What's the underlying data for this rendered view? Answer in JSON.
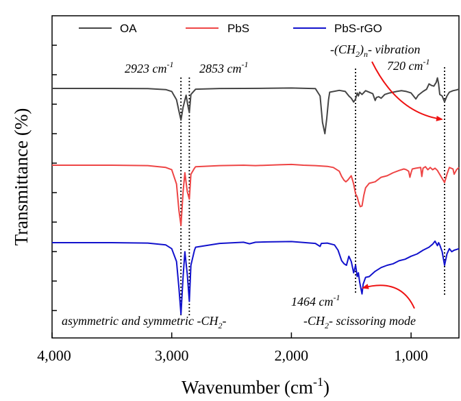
{
  "chart_data": {
    "type": "line",
    "xlabel": "Wavenumber (cm",
    "xlabel_superscript": "-1",
    "xlabel_suffix": ")",
    "ylabel": "Transmittance (%)",
    "xlim": [
      4000,
      600
    ],
    "x_reversed": true,
    "xticks": [
      4000,
      3000,
      2000,
      1000
    ],
    "xtick_labels": [
      "4,000",
      "3,000",
      "2,000",
      "1,000"
    ],
    "ytick_count": 10,
    "ytick_labels_shown": false,
    "grid": false,
    "legend_position": "top",
    "series": [
      {
        "name": "OA",
        "color": "#444444",
        "x": [
          4000,
          3500,
          3200,
          3050,
          3000,
          2960,
          2940,
          2923,
          2905,
          2880,
          2866,
          2853,
          2840,
          2800,
          2600,
          2400,
          2200,
          2000,
          1800,
          1760,
          1740,
          1720,
          1705,
          1690,
          1680,
          1600,
          1550,
          1520,
          1500,
          1480,
          1464,
          1450,
          1440,
          1430,
          1410,
          1380,
          1320,
          1300,
          1290,
          1270,
          1250,
          1220,
          1180,
          1120,
          1080,
          1040,
          1000,
          980,
          960,
          940,
          900,
          870,
          850,
          830,
          810,
          790,
          780,
          770,
          760,
          740,
          720,
          700,
          680,
          650,
          620,
          600
        ],
        "y": [
          0.0,
          0.0,
          0.2,
          1.5,
          4.0,
          15.0,
          30.0,
          42.0,
          25.0,
          9.0,
          22.0,
          32.0,
          8.0,
          1.0,
          0.1,
          0.0,
          -0.2,
          -0.5,
          0.2,
          10.0,
          45.0,
          60.0,
          40.0,
          15.0,
          5.0,
          2.5,
          4.0,
          10.0,
          13.0,
          18.0,
          14.0,
          6.0,
          10.0,
          5.0,
          8.0,
          3.0,
          7.0,
          16.0,
          12.0,
          11.0,
          13.0,
          8.0,
          6.0,
          4.0,
          3.0,
          4.0,
          6.0,
          10.0,
          14.0,
          9.0,
          4.0,
          1.0,
          -6.0,
          -4.0,
          -3.0,
          -8.0,
          -14.0,
          -6.0,
          8.0,
          10.0,
          18.0,
          10.0,
          5.0,
          3.0,
          2.0,
          1.0
        ]
      },
      {
        "name": "PbS",
        "color": "#ee4444",
        "x": [
          4000,
          3500,
          3200,
          3050,
          3000,
          2960,
          2940,
          2923,
          2905,
          2890,
          2870,
          2853,
          2840,
          2810,
          2800,
          2600,
          2400,
          2300,
          2100,
          2000,
          1900,
          1800,
          1700,
          1650,
          1600,
          1580,
          1560,
          1545,
          1530,
          1500,
          1480,
          1464,
          1450,
          1440,
          1425,
          1410,
          1395,
          1380,
          1350,
          1300,
          1250,
          1200,
          1150,
          1100,
          1060,
          1040,
          1020,
          1010,
          1000,
          990,
          960,
          920,
          910,
          900,
          880,
          860,
          840,
          820,
          800,
          780,
          750,
          720,
          700,
          680,
          650,
          640,
          620,
          600
        ],
        "y": [
          0.0,
          0.0,
          0.5,
          3.0,
          6.0,
          25.0,
          60.0,
          80.0,
          35.0,
          10.0,
          35.0,
          45.0,
          12.0,
          4.0,
          2.0,
          0.5,
          0.0,
          0.5,
          -0.5,
          -1.0,
          0.0,
          0.5,
          1.5,
          3.0,
          8.0,
          15.0,
          20.0,
          22.0,
          20.0,
          14.0,
          25.0,
          38.0,
          42.0,
          48.0,
          55.0,
          54.0,
          40.0,
          30.0,
          24.0,
          22.0,
          16.0,
          14.0,
          10.0,
          7.0,
          5.0,
          6.0,
          8.0,
          16.0,
          10.0,
          5.0,
          4.0,
          3.0,
          15.0,
          4.0,
          2.0,
          6.0,
          3.0,
          6.0,
          4.0,
          7.0,
          15.0,
          23.0,
          12.0,
          3.0,
          5.0,
          12.0,
          6.0,
          3.0
        ]
      },
      {
        "name": "PbS-rGO",
        "color": "#1111cc",
        "x": [
          4000,
          3500,
          3200,
          3050,
          3000,
          2960,
          2940,
          2923,
          2905,
          2890,
          2870,
          2853,
          2840,
          2810,
          2800,
          2600,
          2400,
          2350,
          2300,
          2200,
          2000,
          1800,
          1760,
          1750,
          1700,
          1640,
          1610,
          1580,
          1560,
          1540,
          1520,
          1500,
          1480,
          1464,
          1450,
          1440,
          1430,
          1420,
          1410,
          1400,
          1380,
          1350,
          1300,
          1250,
          1200,
          1150,
          1100,
          1050,
          1000,
          950,
          900,
          850,
          820,
          800,
          780,
          770,
          760,
          740,
          720,
          700,
          680,
          660,
          640,
          620,
          600
        ],
        "y": [
          0.0,
          0.0,
          0.5,
          3.0,
          8.0,
          25.0,
          60.0,
          95.0,
          45.0,
          12.0,
          42.0,
          78.0,
          30.0,
          10.0,
          6.0,
          1.0,
          -0.5,
          1.5,
          -0.5,
          -1.0,
          -1.5,
          1.0,
          5.0,
          1.0,
          0.5,
          3.0,
          10.0,
          24.0,
          28.0,
          30.0,
          18.0,
          25.0,
          40.0,
          30.0,
          45.0,
          40.0,
          52.0,
          60.0,
          68.0,
          55.0,
          46.0,
          45.0,
          38.0,
          33.0,
          30.0,
          28.0,
          24.0,
          22.0,
          18.0,
          15.0,
          10.0,
          6.0,
          2.0,
          -2.0,
          4.0,
          0.0,
          3.0,
          12.0,
          30.0,
          15.0,
          8.0,
          12.0,
          10.0,
          9.0,
          8.0
        ]
      }
    ],
    "annotations": [
      {
        "id": "ann-2923",
        "text": "2923 cm",
        "sup": "-1",
        "line_x": 2923,
        "style": "dotted"
      },
      {
        "id": "ann-2853",
        "text": "2853 cm",
        "sup": "-1",
        "line_x": 2853,
        "style": "dotted"
      },
      {
        "id": "ann-ch2n",
        "text_pre": "-(CH",
        "sub1": "2",
        "text_mid": ")",
        "sub2": "n",
        "text_post": "- vibration"
      },
      {
        "id": "ann-720",
        "text": "720 cm",
        "sup": "-1",
        "line_x": 720,
        "style": "dotted"
      },
      {
        "id": "ann-1464",
        "text": "1464 cm",
        "sup": "-1",
        "line_x": 1464,
        "style": "dotted"
      },
      {
        "id": "ann-scissor",
        "text_pre": "-CH",
        "sub1": "2",
        "text_post": "- scissoring mode"
      },
      {
        "id": "ann-asym",
        "text_pre": "asymmetric and symmetric -CH",
        "sub1": "2",
        "text_post": "-"
      }
    ],
    "arrow_color": "#ee1111"
  }
}
